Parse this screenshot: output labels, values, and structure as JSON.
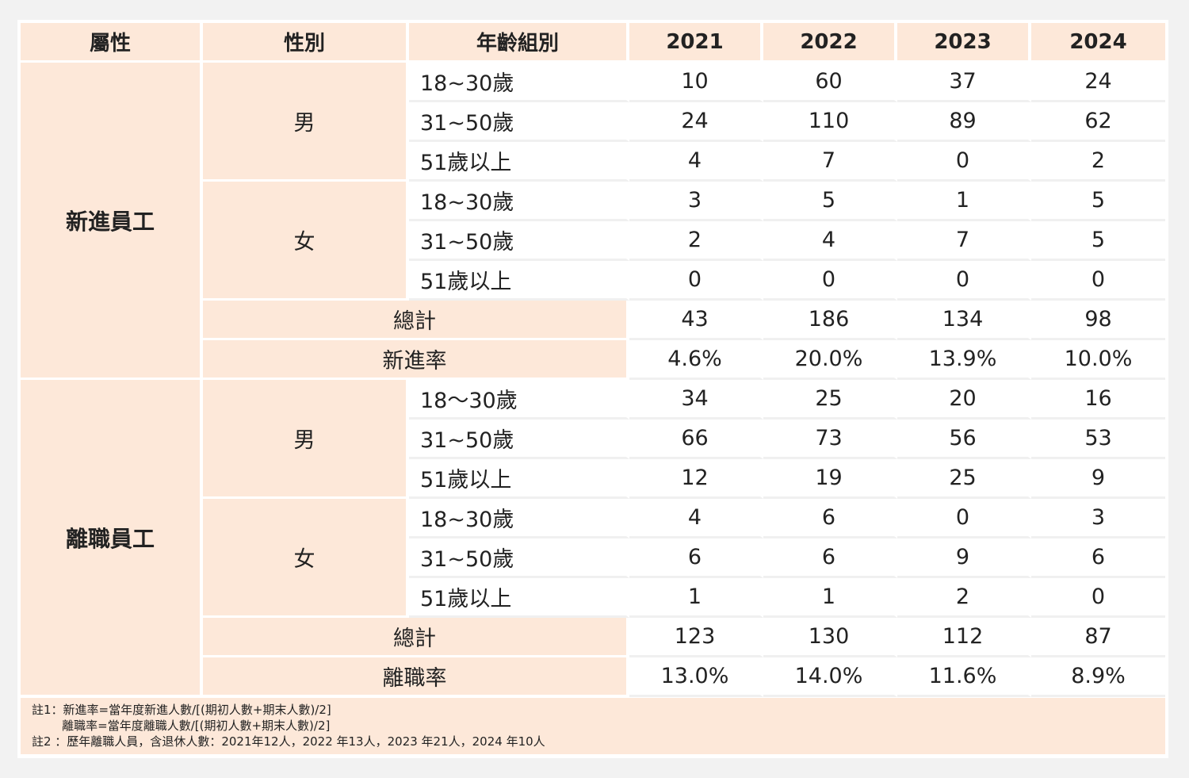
{
  "headers": [
    "屬性",
    "性別",
    "年齡組別",
    "2021",
    "2022",
    "2023",
    "2024"
  ],
  "sections": [
    {
      "attribute": "新進員工",
      "genders": [
        {
          "label": "男",
          "rows": [
            {
              "age": "18~30歲",
              "values": [
                "10",
                "60",
                "37",
                "24"
              ]
            },
            {
              "age": "31~50歲",
              "values": [
                "24",
                "110",
                "89",
                "62"
              ]
            },
            {
              "age": "51歲以上",
              "values": [
                "4",
                "7",
                "0",
                "2"
              ]
            }
          ]
        },
        {
          "label": "女",
          "rows": [
            {
              "age": "18~30歲",
              "values": [
                "3",
                "5",
                "1",
                "5"
              ]
            },
            {
              "age": "31~50歲",
              "values": [
                "2",
                "4",
                "7",
                "5"
              ]
            },
            {
              "age": "51歲以上",
              "values": [
                "0",
                "0",
                "0",
                "0"
              ]
            }
          ]
        }
      ],
      "total": {
        "label": "總計",
        "values": [
          "43",
          "186",
          "134",
          "98"
        ]
      },
      "rate": {
        "label": "新進率",
        "values": [
          "4.6%",
          "20.0%",
          "13.9%",
          "10.0%"
        ]
      }
    },
    {
      "attribute": "離職員工",
      "genders": [
        {
          "label": "男",
          "rows": [
            {
              "age": "18～30歲",
              "values": [
                "34",
                "25",
                "20",
                "16"
              ]
            },
            {
              "age": "31~50歲",
              "values": [
                "66",
                "73",
                "56",
                "53"
              ]
            },
            {
              "age": "51歲以上",
              "values": [
                "12",
                "19",
                "25",
                "9"
              ]
            }
          ]
        },
        {
          "label": "女",
          "rows": [
            {
              "age": "18~30歲",
              "values": [
                "4",
                "6",
                "0",
                "3"
              ]
            },
            {
              "age": "31~50歲",
              "values": [
                "6",
                "6",
                "9",
                "6"
              ]
            },
            {
              "age": "51歲以上",
              "values": [
                "1",
                "1",
                "2",
                "0"
              ]
            }
          ]
        }
      ],
      "total": {
        "label": "總計",
        "values": [
          "123",
          "130",
          "112",
          "87"
        ]
      },
      "rate": {
        "label": "離職率",
        "values": [
          "13.0%",
          "14.0%",
          "11.6%",
          "8.9%"
        ]
      }
    }
  ],
  "notes": [
    "註1：新進率=當年度新進人數/[(期初人數+期末人數)/2]",
    "        離職率=當年度離職人數/[(期初人數+期末人數)/2]",
    "註2 ：歷年離職人員，含退休人數：2021年12人，2022 年13人，2023 年21人，2024 年10人"
  ]
}
